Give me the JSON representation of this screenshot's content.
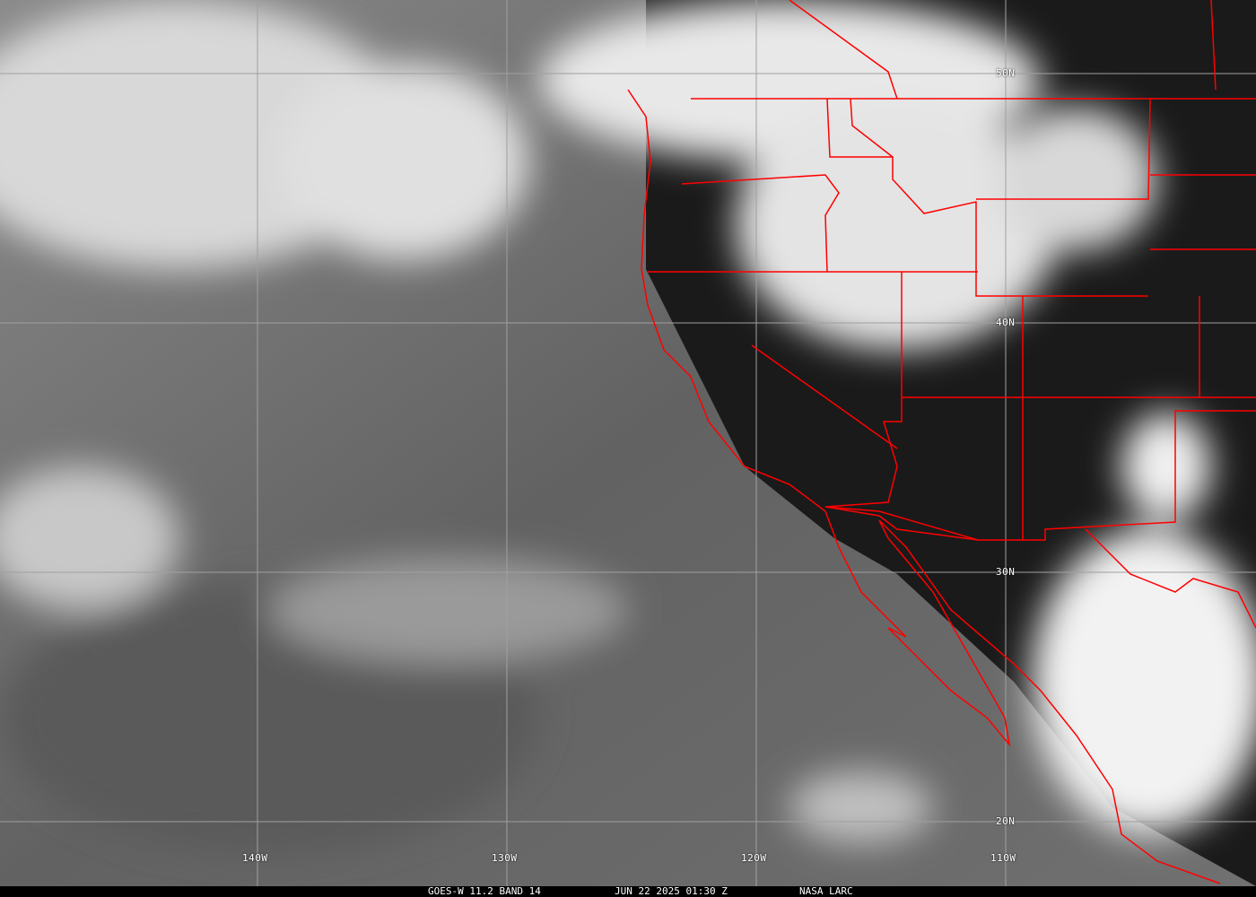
{
  "caption": {
    "satellite": "GOES-W 11.2 BAND 14",
    "datetime": "JUN 22 2025 01:30 Z",
    "source": "NASA LARC"
  },
  "grid": {
    "longitudes": [
      "140W",
      "130W",
      "120W",
      "110W"
    ],
    "latitudes": [
      "50N",
      "40N",
      "30N",
      "20N"
    ]
  },
  "colors": {
    "borders": "#ff0000",
    "grid": "#a0a0a0",
    "caption_bg": "#000000"
  }
}
